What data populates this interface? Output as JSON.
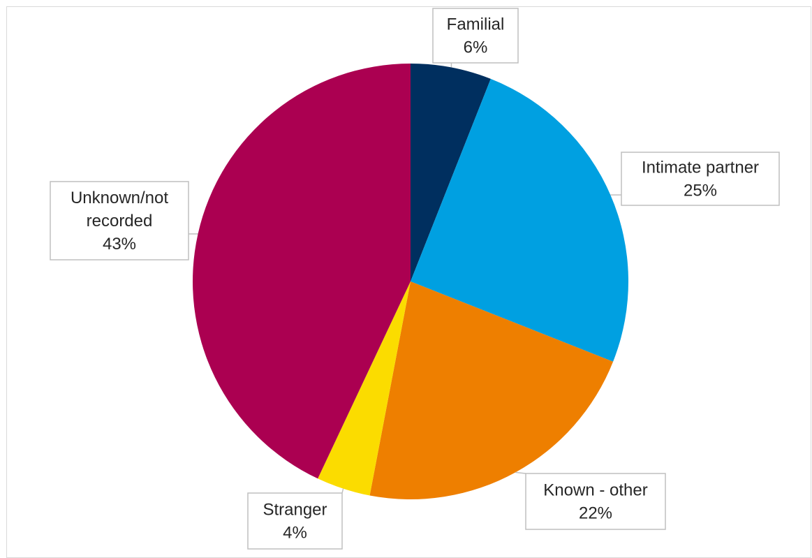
{
  "chart_data": {
    "type": "pie",
    "title": "",
    "slices": [
      {
        "label": "Familial",
        "value": 6,
        "value_label": "6%",
        "color": "#002f5f"
      },
      {
        "label": "Intimate partner",
        "value": 25,
        "value_label": "25%",
        "color": "#00a0e1"
      },
      {
        "label": "Known - other",
        "value": 22,
        "value_label": "22%",
        "color": "#ee7f00"
      },
      {
        "label": "Stranger",
        "value": 4,
        "value_label": "4%",
        "color": "#fbdc00"
      },
      {
        "label": "Unknown/not\nrecorded",
        "value": 43,
        "value_label": "43%",
        "color": "#ab0051"
      }
    ],
    "start_angle_deg": 0,
    "direction": "clockwise",
    "legend": "none",
    "data_labels": "callouts"
  }
}
